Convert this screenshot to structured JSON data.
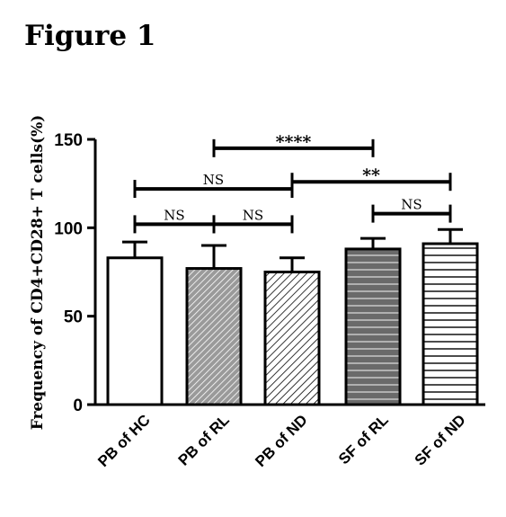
{
  "figure_title": "Figure 1",
  "chart_data": {
    "type": "bar",
    "title": "",
    "xlabel": "",
    "ylabel": "Frequency of CD4+CD28+ T cells(%)",
    "ylim": [
      0,
      150
    ],
    "yticks": [
      "0",
      "50",
      "100",
      "150"
    ],
    "categories": [
      "PB of HC",
      "PB of RL",
      "PB of ND",
      "SF of RL",
      "SF of ND"
    ],
    "values": [
      83,
      77,
      75,
      88,
      91
    ],
    "error_upper": [
      92,
      90,
      83,
      94,
      99
    ],
    "patterns": [
      "none",
      "diag-dense-gray",
      "diag-sparse",
      "horizontal-dark",
      "horizontal-light"
    ],
    "comparisons": [
      {
        "from": 0,
        "to": 1,
        "label": "NS",
        "y": 102
      },
      {
        "from": 1,
        "to": 2,
        "label": "NS",
        "y": 102
      },
      {
        "from": 0,
        "to": 2,
        "label": "NS",
        "y": 122
      },
      {
        "from": 1,
        "to": 3,
        "label": "****",
        "y": 145
      },
      {
        "from": 2,
        "to": 4,
        "label": "**",
        "y": 126
      },
      {
        "from": 3,
        "to": 4,
        "label": "NS",
        "y": 108
      }
    ]
  }
}
